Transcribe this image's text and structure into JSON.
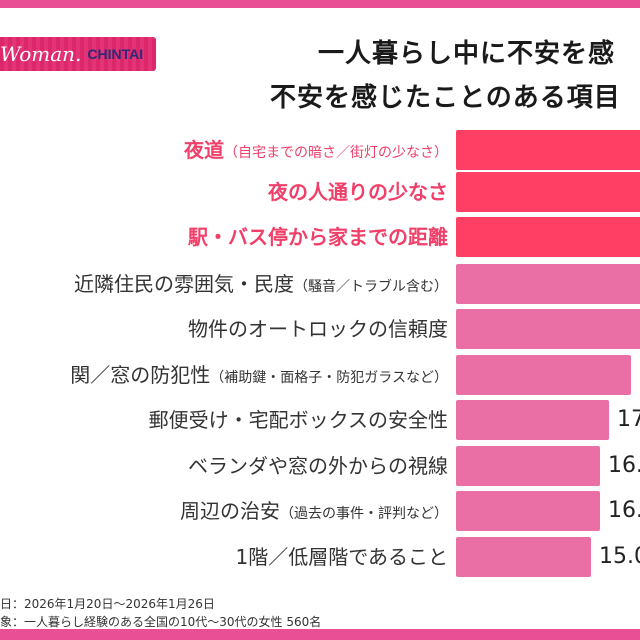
{
  "brand": {
    "logo_text": "Woman.CHINTAI",
    "logo_word": "Woman.",
    "logo_sub": "CHINTAI"
  },
  "colors": {
    "band": "#e84f95",
    "highlight_bar": "#ff3f63",
    "bar": "#e96fa5",
    "highlight_text": "#f0406a"
  },
  "title": {
    "line1": "一人暮らし中に不安を感",
    "line2": "不安を感じたことのある項目"
  },
  "chart_data": {
    "type": "bar",
    "orientation": "horizontal",
    "categories": [
      {
        "label": "夜道",
        "note": "（自宅までの暗さ／街灯の少なさ）",
        "highlight": true
      },
      {
        "label": "夜の人通りの少なさ",
        "note": "",
        "highlight": true
      },
      {
        "label": "駅・バス停から家までの距離",
        "note": "",
        "highlight": true
      },
      {
        "label": "近隣住民の雰囲気・民度",
        "note": "（騒音／トラブル含む）",
        "highlight": false
      },
      {
        "label": "物件のオートロックの信頼度",
        "note": "",
        "highlight": false
      },
      {
        "label": "関／窓の防犯性",
        "note": "（補助鍵・面格子・防犯ガラスなど）",
        "highlight": false
      },
      {
        "label": "郵便受け・宅配ボックスの安全性",
        "note": "",
        "highlight": false
      },
      {
        "label": "ベランダや窓の外からの視線",
        "note": "",
        "highlight": false
      },
      {
        "label": "周辺の治安",
        "note": "（過去の事件・評判など）",
        "highlight": false
      },
      {
        "label": "1階／低層階であること",
        "note": "",
        "highlight": false
      }
    ],
    "values": [
      null,
      null,
      null,
      null,
      null,
      19.4,
      17.0,
      16.0,
      16.0,
      15.0
    ],
    "value_labels": [
      "",
      "",
      "",
      "",
      "",
      "",
      "17",
      "16.",
      "16.",
      "15.0"
    ],
    "unit": "%"
  },
  "footer": {
    "line1": "日：2026年1月20日〜2026年1月26日",
    "line2": "象：一人暮らし経験のある全国の10代〜30代の女性 560名"
  }
}
